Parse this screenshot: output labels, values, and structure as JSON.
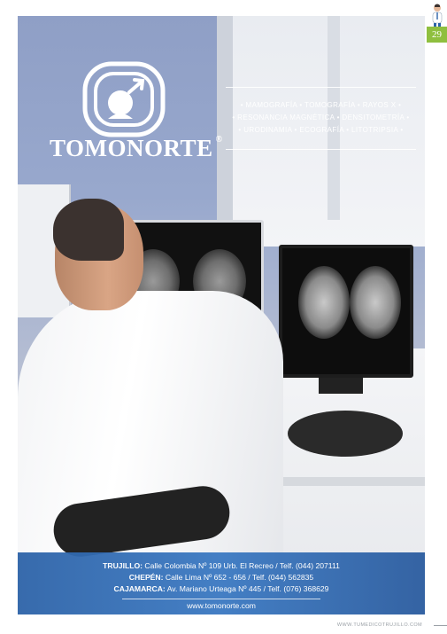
{
  "brand": {
    "name": "TOMONORTE",
    "registered": "®"
  },
  "services": {
    "line1": "• MAMOGRAFÍA  • TOMOGRAFÍA  • RAYOS X  •",
    "line2": "• RESONANCIA MAGNÉTICA  • DENSITOMETRÍA  •",
    "line3": "• URODINAMIA  • ECOGRAFÍA  • LITOTRIPSIA  •"
  },
  "locations": [
    {
      "city": "TRUJILLO:",
      "detail": "Calle Colombia Nº 109 Urb. El Recreo / Telf. (044) 207111"
    },
    {
      "city": "CHEPÉN:",
      "detail": "Calle Lima Nº 652 - 656 / Telf. (044) 562835"
    },
    {
      "city": "CAJAMARCA:",
      "detail": "Av. Mariano Urteaga Nº 445 / Telf. (076) 368629"
    }
  ],
  "website": "www.tomonorte.com",
  "page": {
    "number": "29",
    "footer_site": "WWW.TUMEDICOTRUJILLO.COM"
  },
  "colors": {
    "band": "#3b79c2",
    "badge": "#8fbf3f"
  }
}
